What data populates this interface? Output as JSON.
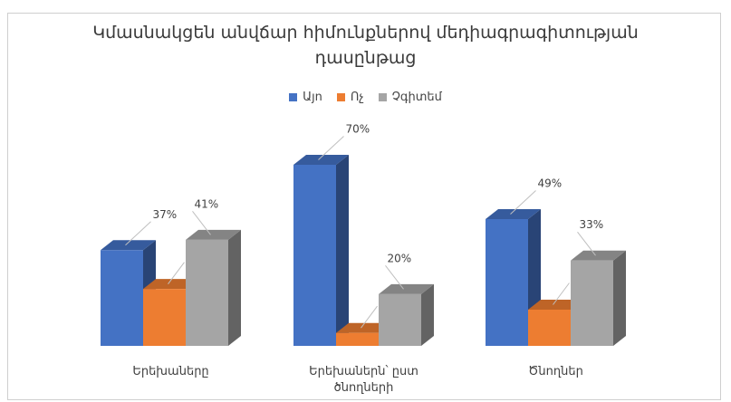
{
  "chart_data": {
    "type": "bar",
    "title_lines": [
      "Կմասնակցեն անվճար հիմունքներով մեդիագրագիտության",
      "դասընթաց"
    ],
    "categories": [
      [
        "Երեխաները"
      ],
      [
        "Երեխաներն՝ ըստ",
        "ծնողների"
      ],
      [
        "Ծնողներ"
      ]
    ],
    "series": [
      {
        "name": "Այո",
        "color": "#4472C4",
        "values": [
          37,
          70,
          49
        ]
      },
      {
        "name": "Ոչ",
        "color": "#ED7D31",
        "values": [
          22,
          5,
          14
        ]
      },
      {
        "name": "Չգիտեմ",
        "color": "#A5A5A5",
        "values": [
          41,
          20,
          33
        ]
      }
    ],
    "value_suffix": "%",
    "ylim": [
      0,
      70
    ],
    "legend_position": "top",
    "grid": false
  }
}
